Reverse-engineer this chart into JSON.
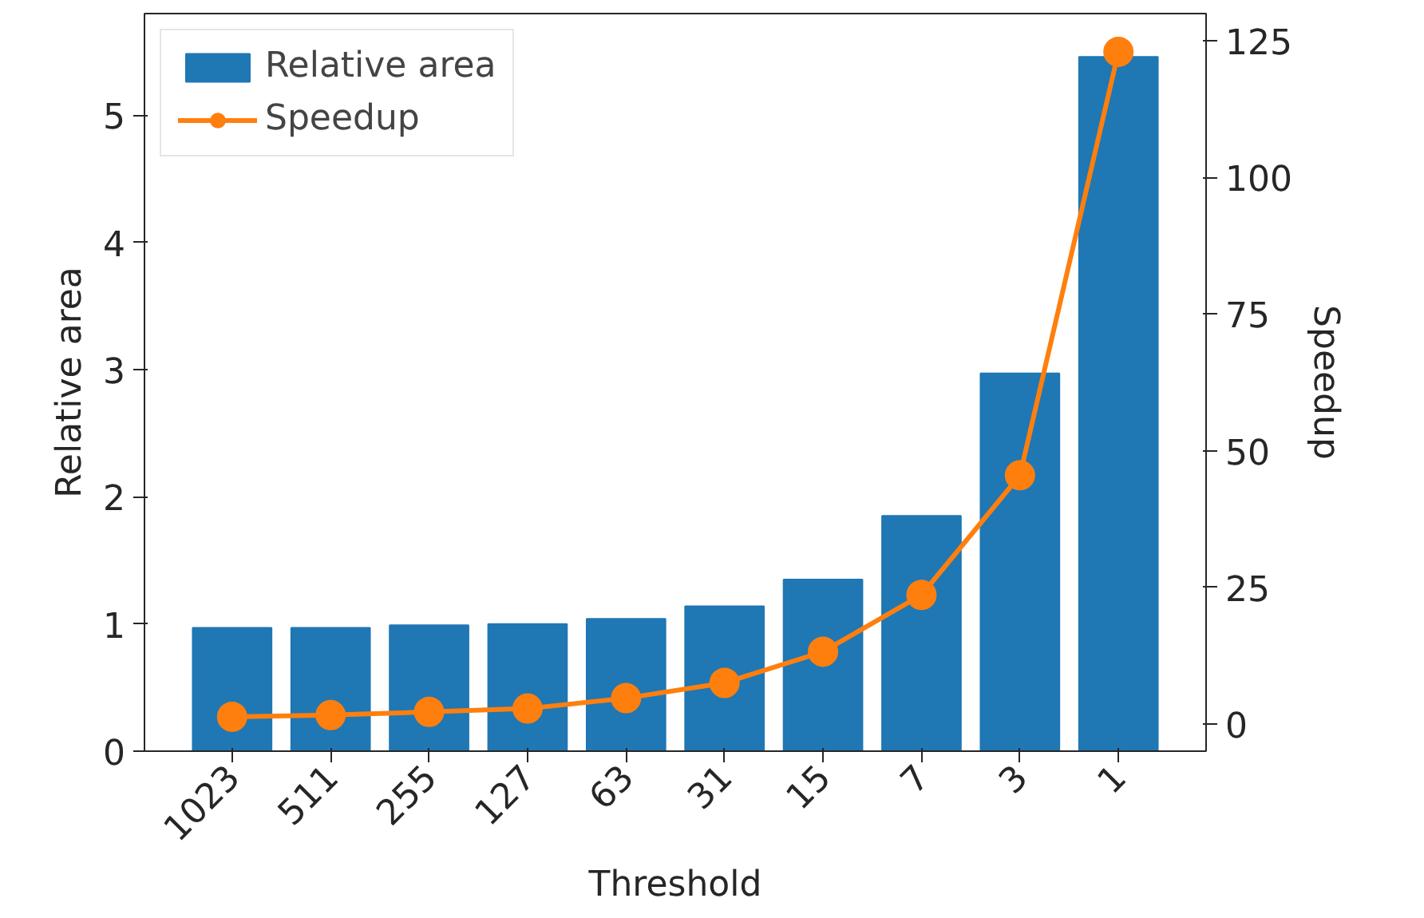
{
  "chart_data": {
    "type": "bar",
    "xlabel": "Threshold",
    "ylabel": "Relative area",
    "y2label": "Speedup",
    "categories": [
      "1023",
      "511",
      "255",
      "127",
      "63",
      "31",
      "15",
      "7",
      "3",
      "1"
    ],
    "series": [
      {
        "name": "Relative area",
        "color": "#1f77b4",
        "values": [
          0.97,
          0.97,
          0.99,
          1.0,
          1.04,
          1.14,
          1.35,
          1.85,
          2.97,
          5.46
        ]
      },
      {
        "name": "Speedup",
        "type": "line",
        "axis": "y2",
        "color": "#ff7f0e",
        "marker": "circle",
        "values": [
          1.3,
          1.6,
          2.2,
          2.8,
          4.7,
          7.5,
          13.2,
          23.6,
          45.5,
          123
        ]
      }
    ],
    "ylim": [
      0,
      5.8
    ],
    "yticks": [
      0,
      1,
      2,
      3,
      4,
      5
    ],
    "y2lim": [
      -5,
      130
    ],
    "y2ticks": [
      0,
      25,
      50,
      75,
      100,
      125
    ],
    "legend": "top left",
    "grid": false
  }
}
